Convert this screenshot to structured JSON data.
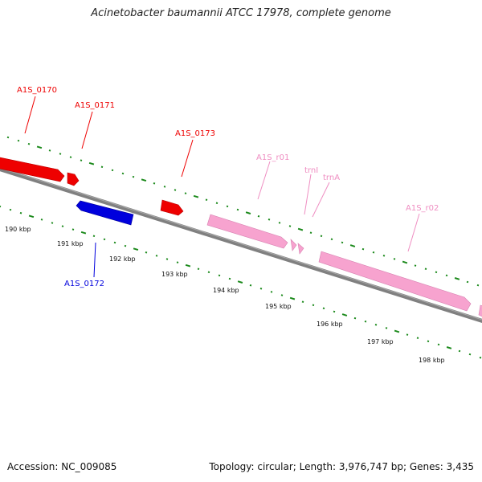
{
  "title": "Acinetobacter baumannii ATCC 17978, complete genome",
  "footer": {
    "accession": "Accession: NC_009085",
    "topology": "Topology: circular; Length: 3,976,747 bp; Genes: 3,435"
  },
  "colors": {
    "forward_gene": "#ee0000",
    "reverse_gene": "#0000dd",
    "rna": "#f7a3cf",
    "rna_label": "#ef8ec2",
    "backbone": "#808080",
    "ticks": "#1c8a1c"
  },
  "scale": {
    "unit": "kbp",
    "labels": [
      "190 kbp",
      "191 kbp",
      "192 kbp",
      "193 kbp",
      "194 kbp",
      "195 kbp",
      "196 kbp",
      "197 kbp",
      "198 kbp"
    ]
  },
  "features": [
    {
      "label": "A1S_0170",
      "strand": "+",
      "type": "gene"
    },
    {
      "label": "A1S_0171",
      "strand": "+",
      "type": "gene"
    },
    {
      "label": "A1S_0172",
      "strand": "-",
      "type": "gene"
    },
    {
      "label": "A1S_0173",
      "strand": "+",
      "type": "gene"
    },
    {
      "label": "A1S_r01",
      "strand": "+",
      "type": "rRNA"
    },
    {
      "label": "trnI",
      "strand": "+",
      "type": "tRNA"
    },
    {
      "label": "trnA",
      "strand": "+",
      "type": "tRNA"
    },
    {
      "label": "A1S_r02",
      "strand": "+",
      "type": "rRNA"
    }
  ]
}
